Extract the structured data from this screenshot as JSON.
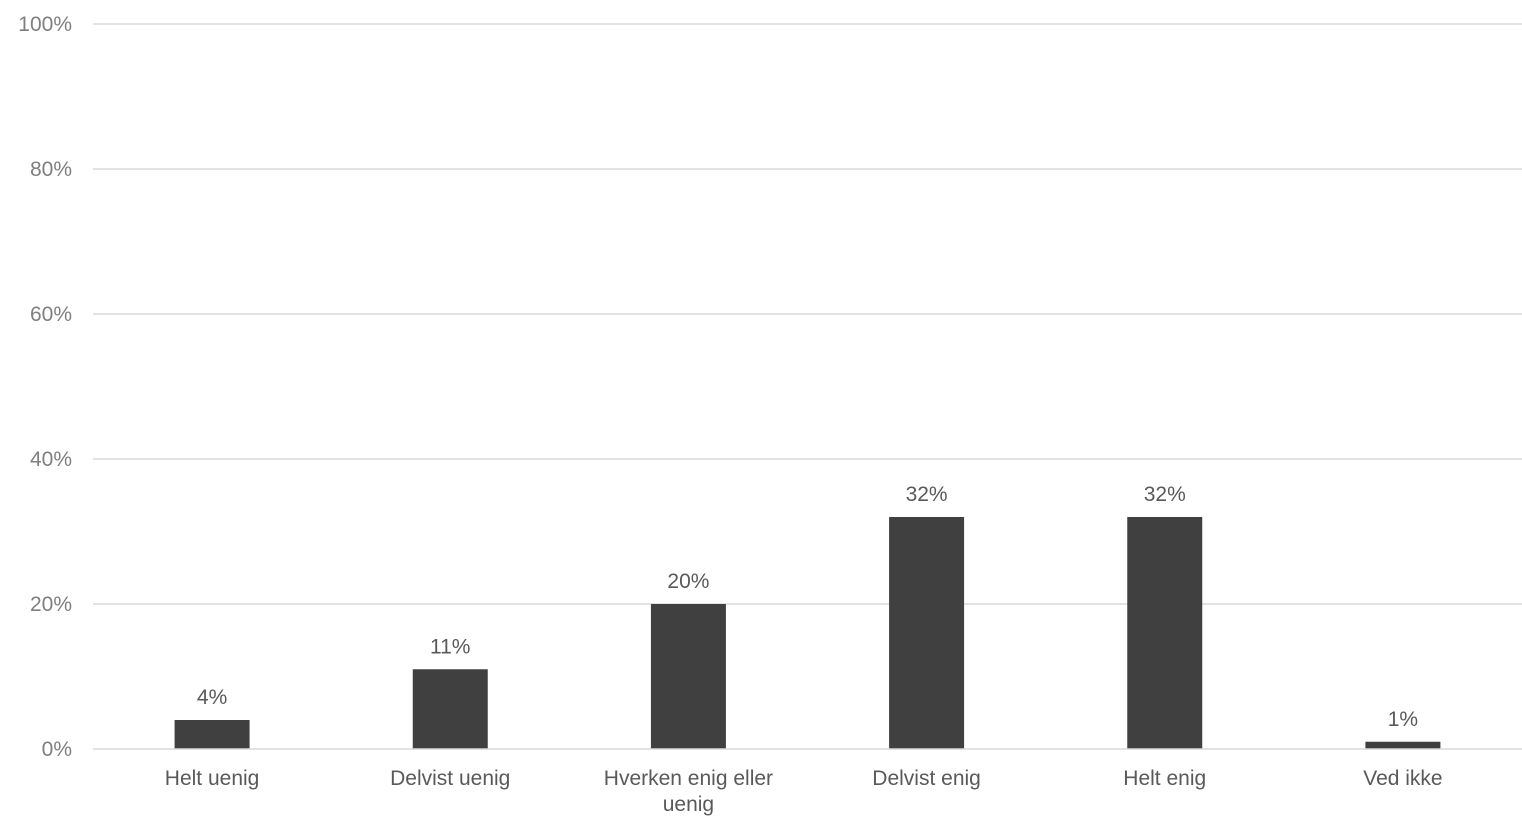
{
  "chart_data": {
    "type": "bar",
    "title": "",
    "xlabel": "",
    "ylabel": "",
    "categories": [
      "Helt uenig",
      "Delvist uenig",
      "Hverken enig eller uenig",
      "Delvist enig",
      "Helt enig",
      "Ved ikke"
    ],
    "category_lines": [
      [
        "Helt uenig"
      ],
      [
        "Delvist uenig"
      ],
      [
        "Hverken enig eller",
        "uenig"
      ],
      [
        "Delvist enig"
      ],
      [
        "Helt enig"
      ],
      [
        "Ved ikke"
      ]
    ],
    "values": [
      4,
      11,
      20,
      32,
      32,
      1
    ],
    "data_labels": [
      "4%",
      "11%",
      "20%",
      "32%",
      "32%",
      "1%"
    ],
    "ylim": [
      0,
      100
    ],
    "yticks": [
      0,
      20,
      40,
      60,
      80,
      100
    ],
    "ytick_labels": [
      "0%",
      "20%",
      "40%",
      "60%",
      "80%",
      "100%"
    ],
    "grid": true,
    "legend": "none",
    "bar_color": "#404040"
  }
}
